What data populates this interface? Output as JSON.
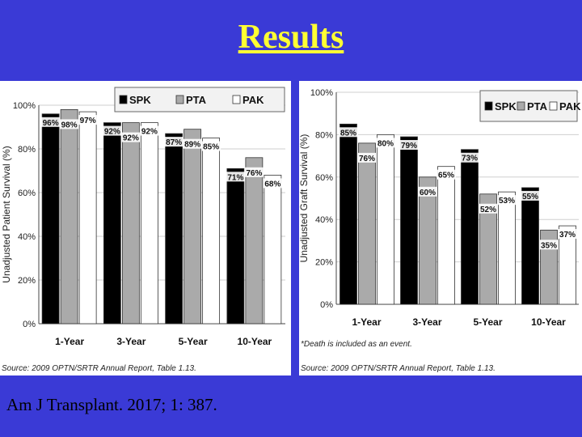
{
  "slide": {
    "title": "Results",
    "citation": "Am J Transplant. 2017; 1: 387."
  },
  "colors": {
    "background": "#3a3ad6",
    "title": "#ffff33",
    "SPK": "#000000",
    "PTA": "#aaaaaa",
    "PAK": "#ffffff"
  },
  "chart_data": [
    {
      "type": "bar",
      "title": "",
      "xlabel": "",
      "ylabel": "Unadjusted Patient Survival (%)",
      "ylim": [
        0,
        100
      ],
      "yticks": [
        "0%",
        "20%",
        "40%",
        "60%",
        "80%",
        "100%"
      ],
      "categories": [
        "1-Year",
        "3-Year",
        "5-Year",
        "10-Year"
      ],
      "series": [
        {
          "name": "SPK",
          "values": [
            96,
            92,
            87,
            71
          ],
          "labels": [
            "96%",
            "92%",
            "87%",
            "71%"
          ]
        },
        {
          "name": "PTA",
          "values": [
            98,
            92,
            89,
            76
          ],
          "labels": [
            "98%",
            "92%",
            "89%",
            "76%"
          ]
        },
        {
          "name": "PAK",
          "values": [
            97,
            92,
            85,
            68
          ],
          "labels": [
            "97%",
            "92%",
            "85%",
            "68%"
          ]
        }
      ],
      "legend": {
        "position": "top-right"
      },
      "grid": true,
      "source": "Source: 2009 OPTN/SRTR Annual Report, Table 1.13."
    },
    {
      "type": "bar",
      "title": "",
      "xlabel": "",
      "ylabel": "Unadjusted Graft Survival (%)",
      "ylim": [
        0,
        100
      ],
      "yticks": [
        "0%",
        "20%",
        "40%",
        "60%",
        "80%",
        "100%"
      ],
      "categories": [
        "1-Year",
        "3-Year",
        "5-Year",
        "10-Year"
      ],
      "series": [
        {
          "name": "SPK",
          "values": [
            85,
            79,
            73,
            55
          ],
          "labels": [
            "85%",
            "79%",
            "73%",
            "55%"
          ]
        },
        {
          "name": "PTA",
          "values": [
            76,
            60,
            52,
            35
          ],
          "labels": [
            "76%",
            "60%",
            "52%",
            "35%"
          ]
        },
        {
          "name": "PAK",
          "values": [
            80,
            65,
            53,
            37
          ],
          "labels": [
            "80%",
            "65%",
            "53%",
            "37%"
          ]
        }
      ],
      "legend": {
        "position": "top-right"
      },
      "grid": true,
      "footnote": "*Death is included as an event.",
      "source": "Source: 2009 OPTN/SRTR Annual Report, Table 1.13."
    }
  ]
}
